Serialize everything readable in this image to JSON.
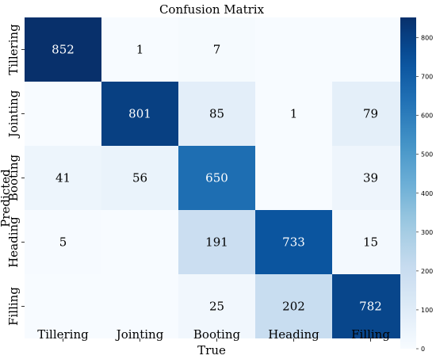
{
  "chart_data": {
    "type": "heatmap",
    "title": "Confusion Matrix",
    "xlabel": "True",
    "ylabel": "Predicted",
    "x_categories": [
      "Tillering",
      "Jointing",
      "Booting",
      "Heading",
      "Filling"
    ],
    "y_categories": [
      "Tillering",
      "Jointing",
      "Booting",
      "Heading",
      "Filling"
    ],
    "values": [
      [
        852,
        1,
        7,
        null,
        null
      ],
      [
        null,
        801,
        85,
        1,
        79
      ],
      [
        41,
        56,
        650,
        null,
        39
      ],
      [
        5,
        null,
        191,
        733,
        15
      ],
      [
        null,
        null,
        25,
        202,
        782
      ]
    ],
    "colorbar": {
      "min": 0,
      "max": 852,
      "ticks": [
        0,
        100,
        200,
        300,
        400,
        500,
        600,
        700,
        800
      ],
      "colormap": "Blues"
    }
  }
}
